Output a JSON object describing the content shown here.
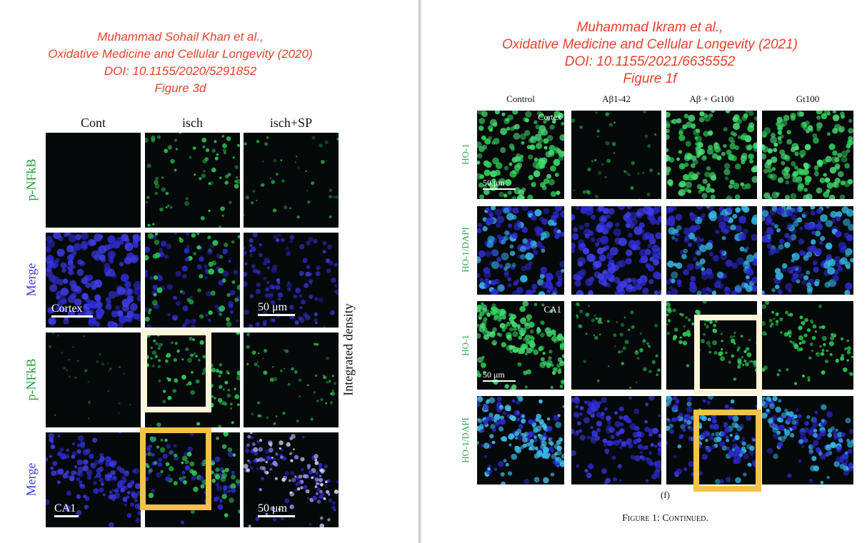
{
  "left_header": {
    "line1": "Muhammad Sohail Khan et al.,",
    "line2": "Oxidative Medicine and Cellular Longevity (2020)",
    "line3": "DOI: 10.1155/2020/5291852",
    "line4": "Figure 3d"
  },
  "right_header": {
    "line1": "Muhammad Ikram et al.,",
    "line2": "Oxidative Medicine and Cellular Longevity (2021)",
    "line3": "DOI: 10.1155/2021/6635552",
    "line4": "Figure 1f"
  },
  "left_figure": {
    "columns": [
      "Cont",
      "isch",
      "isch+SP"
    ],
    "rows": [
      "p-NFkB",
      "Merge",
      "p-NFkB",
      "Merge"
    ],
    "cortex_label": "Cortex",
    "ca1_label": "CA1",
    "scale_label_row2": "50 μm",
    "scale_label_row4": "50 μm",
    "side_axis_label": "Integrated density"
  },
  "right_figure": {
    "columns": [
      "Control",
      "Aβ1-42",
      "Aβ + Gt100",
      "Gt100"
    ],
    "rows": [
      "HO-1",
      "HO-1/DAPI",
      "HO-1",
      "HO-1/DAPI"
    ],
    "cortex_label": "Cortex",
    "ca1_label": "CA1",
    "scale_label_row1": "50 μm",
    "scale_label_row3": "50 μm",
    "panel_letter": "(f)",
    "caption": "Figure 1: Continued."
  },
  "colors": {
    "header_red": "#e8412c",
    "row_green": "#1f9e3a",
    "row_blue": "#3b3bd6",
    "highlight_cream": "#fbf6d8",
    "highlight_gold": "#f2c24a",
    "cell_green": "#2fd35a",
    "cell_blue": "#2d2ad0",
    "cell_cyan": "#35b6e6"
  }
}
